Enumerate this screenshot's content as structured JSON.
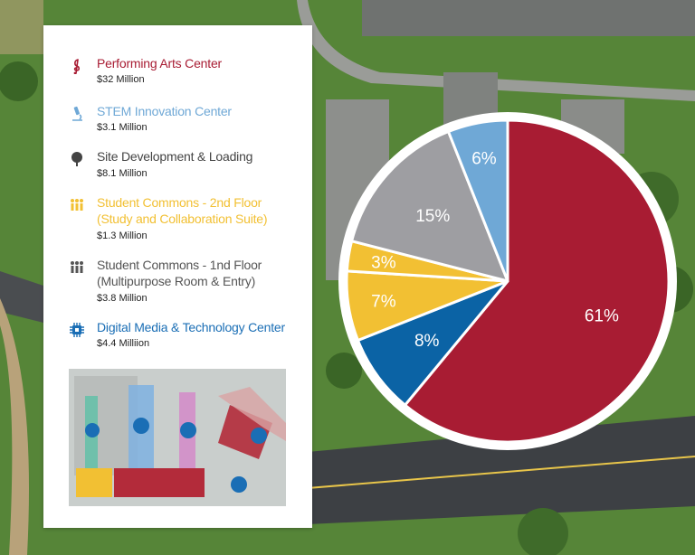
{
  "colors": {
    "performing": "#a81c33",
    "stem": "#6fa8d6",
    "site": "#444444",
    "commons2": "#f2c033",
    "commons1": "#555555",
    "digital": "#1a6eb5",
    "pie_site": "#9e9ea2",
    "pie_digital": "#0b63a5"
  },
  "legend": [
    {
      "label": "Performing Arts Center",
      "value": "$32 Million",
      "color": "#a81c33",
      "icon": "treble-clef-icon"
    },
    {
      "label": "STEM Innovation Center",
      "value": "$3.1 Million",
      "color": "#6fa8d6",
      "icon": "microscope-icon"
    },
    {
      "label": "Site Development & Loading",
      "value": "$8.1 Million",
      "color": "#444444",
      "icon": "tree-icon"
    },
    {
      "label": "Student Commons - 2nd Floor",
      "label2": "(Study and Collaboration Suite)",
      "value": "$1.3 Million",
      "color": "#f2c033",
      "icon": "people-icon"
    },
    {
      "label": "Student Commons - 1nd Floor",
      "label2": "(Multipurpose Room & Entry)",
      "value": "$3.8 Million",
      "color": "#555555",
      "icon": "people-icon"
    },
    {
      "label": "Digital Media & Technology Center",
      "value": "$4.4 Milliion",
      "color": "#1a6eb5",
      "icon": "chip-icon"
    }
  ],
  "chart_data": {
    "type": "pie",
    "title": "",
    "slices": [
      {
        "label": "61%",
        "value": 61,
        "color": "#a81c33"
      },
      {
        "label": "8%",
        "value": 8,
        "color": "#0b63a5"
      },
      {
        "label": "7%",
        "value": 7,
        "color": "#f2c033"
      },
      {
        "label": "3%",
        "value": 3,
        "color": "#f2c033"
      },
      {
        "label": "15%",
        "value": 15,
        "color": "#9e9ea2"
      },
      {
        "label": "6%",
        "value": 6,
        "color": "#6fa8d6"
      }
    ],
    "start_angle_deg": 0,
    "direction": "clockwise"
  }
}
